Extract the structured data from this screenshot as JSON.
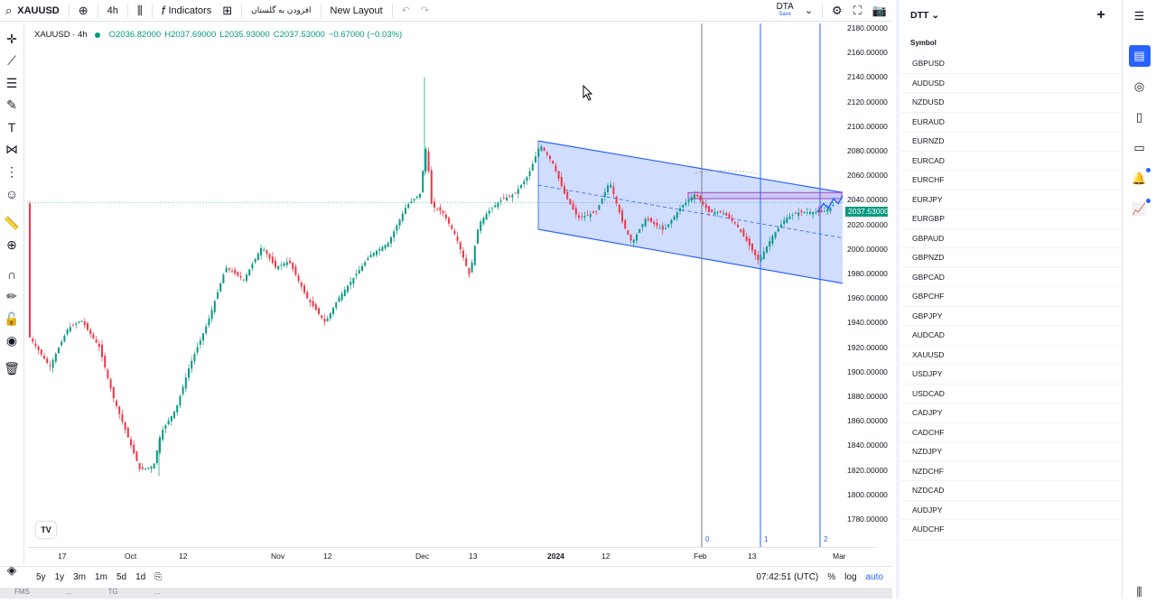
{
  "topbar": {
    "symbol": "XAUUSD",
    "interval": "4h",
    "indicators_label": "Indicators",
    "persian_label": "افزودن به گلستان",
    "layout_label": "New Layout",
    "dta_label": "DTA",
    "dta_sub": "Save"
  },
  "legend": {
    "title": "XAUUSD · 4h",
    "open": "O2036.82000",
    "high": "H2037.69000",
    "low": "L2035.93000",
    "close": "C2037.53000",
    "change": "−0.67000 (−0.03%)"
  },
  "price_axis": [
    "2180.00000",
    "2160.00000",
    "2140.00000",
    "2120.00000",
    "2100.00000",
    "2080.00000",
    "2060.00000",
    "2040.00000",
    "2020.00000",
    "2000.00000",
    "1980.00000",
    "1960.00000",
    "1940.00000",
    "1920.00000",
    "1900.00000",
    "1880.00000",
    "1860.00000",
    "1840.00000",
    "1820.00000",
    "1800.00000",
    "1780.00000"
  ],
  "current_price": "2037.53000",
  "time_axis": [
    "17",
    "Oct",
    "12",
    "Nov",
    "12",
    "Dec",
    "13",
    "2024",
    "12",
    "Feb",
    "13",
    "Mar"
  ],
  "vline_labels": [
    "0",
    "1",
    "2"
  ],
  "bottombar": {
    "ranges": [
      "5y",
      "1y",
      "3m",
      "1m",
      "5d",
      "1d"
    ],
    "clock": "07:42:51 (UTC)",
    "pct": "%",
    "log": "log",
    "auto": "auto"
  },
  "statusbar": [
    "FMS",
    "...",
    "TG",
    "..."
  ],
  "watchlist": {
    "name": "DTT",
    "column": "Symbol",
    "symbols": [
      "GBPUSD",
      "AUDUSD",
      "NZDUSD",
      "EURAUD",
      "EURNZD",
      "EURCAD",
      "EURCHF",
      "EURJPY",
      "EURGBP",
      "GBPAUD",
      "GBPNZD",
      "GBPCAD",
      "GBPCHF",
      "GBPJPY",
      "AUDCAD",
      "XAUUSD",
      "USDJPY",
      "USDCAD",
      "CADJPY",
      "CADCHF",
      "NZDJPY",
      "NZDCHF",
      "NZDCAD",
      "AUDJPY",
      "AUDCHF"
    ]
  },
  "colors": {
    "up": "#089981",
    "down": "#f23645",
    "accent": "#2962ff",
    "channel": "#2962ff"
  },
  "icons": [
    "crosshair-icon",
    "trendline-icon",
    "fib-icon",
    "brush-icon",
    "text-icon",
    "pattern-icon",
    "forecast-icon",
    "emoji-icon",
    "ruler-icon",
    "zoom-icon",
    "magnet-icon",
    "lock-drawings-icon",
    "lock-icon",
    "eye-icon",
    "trash-icon"
  ]
}
